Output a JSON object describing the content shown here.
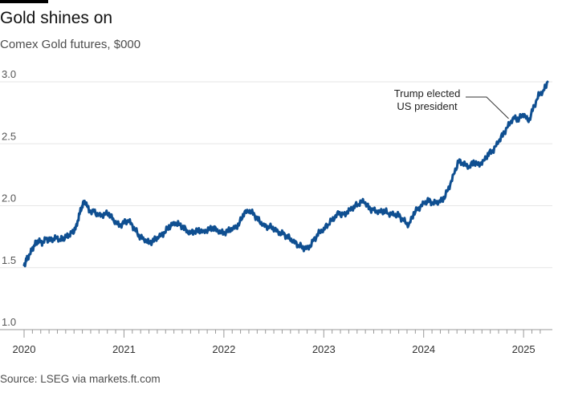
{
  "header": {
    "title": "Gold shines on",
    "subtitle": "Comex Gold futures, $000"
  },
  "footer": {
    "source": "Source: LSEG via markets.ft.com"
  },
  "colors": {
    "line": "#0f4f91",
    "grid": "#e6e6e6",
    "axis": "#999999",
    "annotation_line": "#333333"
  },
  "chart_data": {
    "type": "line",
    "title": "Gold shines on",
    "subtitle": "Comex Gold futures, $000",
    "xlabel": "",
    "ylabel": "",
    "ylim": [
      1.0,
      3.0
    ],
    "xlim": [
      2020.0,
      2025.24
    ],
    "yticks": [
      1.0,
      1.5,
      2.0,
      2.5,
      3.0
    ],
    "ytick_labels": [
      "1.0",
      "1.5",
      "2.0",
      "2.5",
      "3.0"
    ],
    "xticks": [
      2020,
      2021,
      2022,
      2023,
      2024,
      2025
    ],
    "xtick_labels": [
      "2020",
      "2021",
      "2022",
      "2023",
      "2024",
      "2025"
    ],
    "grid": true,
    "legend": "none",
    "series": [
      {
        "x": [
          2020.0,
          2020.03,
          2020.07,
          2020.1,
          2020.14,
          2020.18,
          2020.22,
          2020.27,
          2020.31,
          2020.36,
          2020.4,
          2020.44,
          2020.48,
          2020.52,
          2020.55,
          2020.58,
          2020.61,
          2020.65,
          2020.7,
          2020.75,
          2020.8,
          2020.85,
          2020.9,
          2020.95,
          2021.0,
          2021.05,
          2021.1,
          2021.15,
          2021.2,
          2021.25,
          2021.3,
          2021.35,
          2021.4,
          2021.45,
          2021.5,
          2021.55,
          2021.6,
          2021.65,
          2021.7,
          2021.75,
          2021.8,
          2021.85,
          2021.9,
          2021.95,
          2022.0,
          2022.05,
          2022.1,
          2022.15,
          2022.2,
          2022.25,
          2022.3,
          2022.35,
          2022.4,
          2022.45,
          2022.5,
          2022.55,
          2022.6,
          2022.65,
          2022.7,
          2022.75,
          2022.8,
          2022.85,
          2022.9,
          2022.95,
          2023.0,
          2023.05,
          2023.1,
          2023.15,
          2023.2,
          2023.25,
          2023.3,
          2023.35,
          2023.4,
          2023.45,
          2023.5,
          2023.55,
          2023.6,
          2023.65,
          2023.7,
          2023.75,
          2023.8,
          2023.85,
          2023.9,
          2023.95,
          2024.0,
          2024.05,
          2024.1,
          2024.15,
          2024.2,
          2024.25,
          2024.3,
          2024.35,
          2024.4,
          2024.45,
          2024.5,
          2024.55,
          2024.6,
          2024.65,
          2024.7,
          2024.75,
          2024.8,
          2024.85,
          2024.9,
          2024.95,
          2025.0,
          2025.05,
          2025.1,
          2025.15,
          2025.2,
          2025.24
        ],
        "y": [
          1.52,
          1.57,
          1.63,
          1.68,
          1.72,
          1.7,
          1.73,
          1.72,
          1.74,
          1.73,
          1.74,
          1.76,
          1.78,
          1.82,
          1.92,
          2.0,
          2.04,
          1.96,
          1.95,
          1.92,
          1.93,
          1.94,
          1.88,
          1.84,
          1.86,
          1.88,
          1.82,
          1.76,
          1.73,
          1.7,
          1.72,
          1.75,
          1.78,
          1.83,
          1.86,
          1.85,
          1.82,
          1.78,
          1.79,
          1.8,
          1.79,
          1.81,
          1.82,
          1.79,
          1.78,
          1.8,
          1.82,
          1.85,
          1.94,
          1.96,
          1.93,
          1.88,
          1.84,
          1.83,
          1.82,
          1.78,
          1.77,
          1.74,
          1.71,
          1.68,
          1.66,
          1.66,
          1.72,
          1.78,
          1.81,
          1.86,
          1.9,
          1.94,
          1.92,
          1.96,
          1.99,
          2.02,
          2.04,
          1.98,
          1.96,
          1.95,
          1.96,
          1.94,
          1.93,
          1.92,
          1.88,
          1.84,
          1.94,
          1.98,
          2.02,
          2.04,
          2.02,
          2.03,
          2.06,
          2.14,
          2.25,
          2.36,
          2.34,
          2.31,
          2.35,
          2.33,
          2.36,
          2.42,
          2.45,
          2.52,
          2.58,
          2.65,
          2.71,
          2.7,
          2.74,
          2.68,
          2.79,
          2.89,
          2.93,
          3.0
        ]
      }
    ],
    "annotations": [
      {
        "text": [
          "Trump elected",
          "US president"
        ],
        "x": 2024.85,
        "y": 2.69
      }
    ]
  }
}
